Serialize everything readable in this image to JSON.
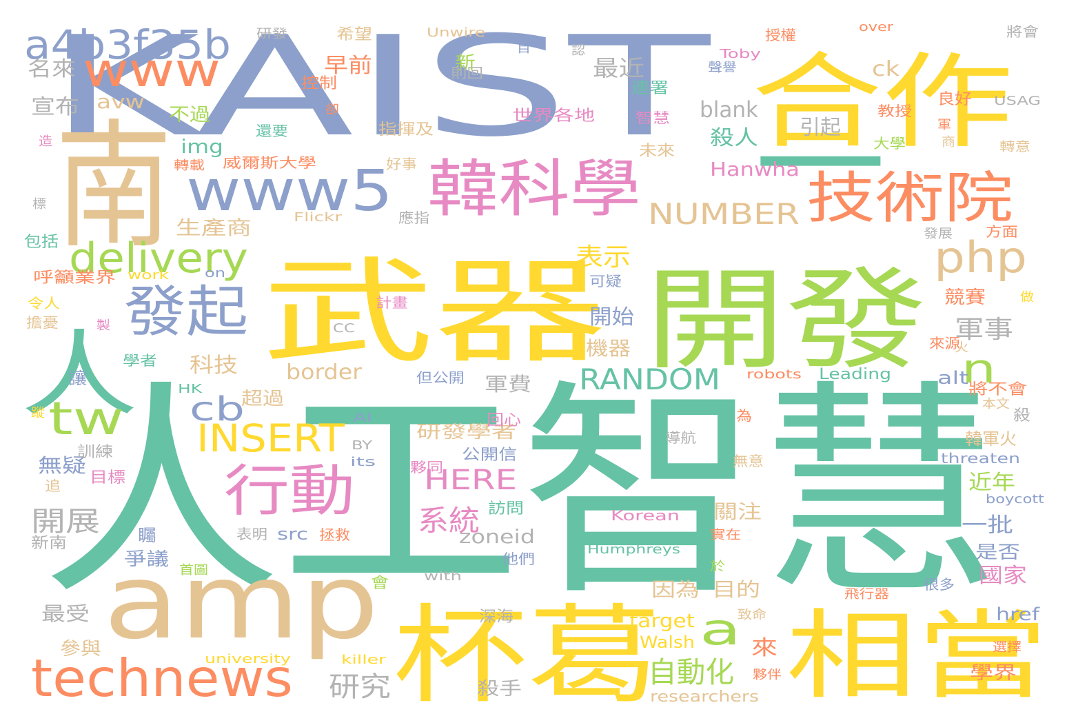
{
  "palette": {
    "teal": "#66c2a5",
    "orange": "#fc8d62",
    "blue": "#8da0cb",
    "pink": "#e78ac3",
    "lime": "#a6d854",
    "yellow": "#ffd92f",
    "tan": "#e5c494",
    "gray": "#b3b3b3"
  },
  "words": [
    {
      "text": "人工智慧",
      "color": "teal"
    },
    {
      "text": "KAIST",
      "color": "blue"
    },
    {
      "text": "南",
      "color": "tan"
    },
    {
      "text": "合作",
      "color": "yellow"
    },
    {
      "text": "武器",
      "color": "yellow"
    },
    {
      "text": "開發",
      "color": "lime"
    },
    {
      "text": "一",
      "color": "teal"
    },
    {
      "text": "amp",
      "color": "tan"
    },
    {
      "text": "杯葛",
      "color": "yellow"
    },
    {
      "text": "相當",
      "color": "yellow"
    },
    {
      "text": "人",
      "color": "teal"
    },
    {
      "text": "韓科學",
      "color": "pink"
    },
    {
      "text": "技術院",
      "color": "orange"
    },
    {
      "text": "www5",
      "color": "blue"
    },
    {
      "text": "www",
      "color": "orange"
    },
    {
      "text": "a4b3f35b",
      "color": "blue"
    },
    {
      "text": "發起",
      "color": "blue"
    },
    {
      "text": "行動",
      "color": "pink"
    },
    {
      "text": "technews",
      "color": "orange"
    },
    {
      "text": "delivery",
      "color": "lime"
    },
    {
      "text": "tw",
      "color": "lime"
    },
    {
      "text": "php",
      "color": "tan"
    },
    {
      "text": "INSERT",
      "color": "yellow"
    },
    {
      "text": "RANDOM",
      "color": "teal"
    },
    {
      "text": "NUMBER",
      "color": "tan"
    },
    {
      "text": "a",
      "color": "lime"
    },
    {
      "text": "n",
      "color": "lime"
    },
    {
      "text": "cb",
      "color": "blue"
    },
    {
      "text": "自動化",
      "color": "lime"
    },
    {
      "text": "系統",
      "color": "pink"
    },
    {
      "text": "HERE",
      "color": "pink"
    },
    {
      "text": "研究",
      "color": "gray"
    },
    {
      "text": "開展",
      "color": "gray"
    },
    {
      "text": "軍事",
      "color": "gray"
    },
    {
      "text": "表示",
      "color": "yellow"
    },
    {
      "text": "宣布",
      "color": "gray"
    },
    {
      "text": "名來",
      "color": "gray"
    },
    {
      "text": "早前",
      "color": "orange"
    },
    {
      "text": "最近",
      "color": "gray"
    },
    {
      "text": "新",
      "color": "lime"
    },
    {
      "text": "ck",
      "color": "tan"
    },
    {
      "text": "avw",
      "color": "tan"
    },
    {
      "text": "不過",
      "color": "lime"
    },
    {
      "text": "blank",
      "color": "gray"
    },
    {
      "text": "引起",
      "color": "gray"
    },
    {
      "text": "殺人",
      "color": "teal"
    },
    {
      "text": "img",
      "color": "teal"
    },
    {
      "text": "Hanwha",
      "color": "pink"
    },
    {
      "text": "生產商",
      "color": "tan"
    },
    {
      "text": "開始",
      "color": "blue"
    },
    {
      "text": "機器",
      "color": "tan"
    },
    {
      "text": "科技",
      "color": "tan"
    },
    {
      "text": "border",
      "color": "tan"
    },
    {
      "text": "軍費",
      "color": "gray"
    },
    {
      "text": "競賽",
      "color": "orange"
    },
    {
      "text": "超過",
      "color": "tan"
    },
    {
      "text": "alt",
      "color": "blue"
    },
    {
      "text": "src",
      "color": "blue"
    },
    {
      "text": "zoneid",
      "color": "gray"
    },
    {
      "text": "無疑",
      "color": "blue"
    },
    {
      "text": "研發學者",
      "color": "tan"
    },
    {
      "text": "近年",
      "color": "lime"
    },
    {
      "text": "一批",
      "color": "blue"
    },
    {
      "text": "是否",
      "color": "blue"
    },
    {
      "text": "國家",
      "color": "pink"
    },
    {
      "text": "關注",
      "color": "tan"
    },
    {
      "text": "目的",
      "color": "tan"
    },
    {
      "text": "因為",
      "color": "tan"
    },
    {
      "text": "爭議",
      "color": "blue"
    },
    {
      "text": "最受",
      "color": "gray"
    },
    {
      "text": "參與",
      "color": "tan"
    },
    {
      "text": "target",
      "color": "yellow"
    },
    {
      "text": "來",
      "color": "orange"
    },
    {
      "text": "Walsh",
      "color": "yellow"
    },
    {
      "text": "href",
      "color": "blue"
    },
    {
      "text": "學界",
      "color": "orange"
    },
    {
      "text": "殺手",
      "color": "gray"
    },
    {
      "text": "researchers",
      "color": "tan"
    },
    {
      "text": "火",
      "color": "tan"
    },
    {
      "text": "韓軍火",
      "color": "tan"
    },
    {
      "text": "將不會",
      "color": "orange"
    },
    {
      "text": "殺",
      "color": "gray"
    },
    {
      "text": "本文",
      "color": "tan"
    },
    {
      "text": "Leading",
      "color": "teal"
    },
    {
      "text": "robots",
      "color": "orange"
    },
    {
      "text": "threaten",
      "color": "blue"
    },
    {
      "text": "boycott",
      "color": "blue"
    },
    {
      "text": "Korean",
      "color": "pink"
    },
    {
      "text": "Humphreys",
      "color": "teal"
    },
    {
      "text": "無意",
      "color": "tan"
    },
    {
      "text": "實在",
      "color": "orange"
    },
    {
      "text": "於",
      "color": "lime"
    },
    {
      "text": "很多",
      "color": "blue"
    },
    {
      "text": "飛行器",
      "color": "orange"
    },
    {
      "text": "選擇",
      "color": "orange"
    },
    {
      "text": "夥伴",
      "color": "orange"
    },
    {
      "text": "致命",
      "color": "tan"
    },
    {
      "text": "killer",
      "color": "yellow"
    },
    {
      "text": "university",
      "color": "yellow"
    },
    {
      "text": "深海",
      "color": "gray"
    },
    {
      "text": "會",
      "color": "lime"
    },
    {
      "text": "with",
      "color": "gray"
    },
    {
      "text": "首圖",
      "color": "lime"
    },
    {
      "text": "新南",
      "color": "gray"
    },
    {
      "text": "表明",
      "color": "gray"
    },
    {
      "text": "拯救",
      "color": "orange"
    },
    {
      "text": "訪問",
      "color": "teal"
    },
    {
      "text": "他們",
      "color": "blue"
    },
    {
      "text": "矚",
      "color": "blue"
    },
    {
      "text": "追",
      "color": "tan"
    },
    {
      "text": "目標",
      "color": "pink"
    },
    {
      "text": "訓練",
      "color": "gray"
    },
    {
      "text": "its",
      "color": "blue"
    },
    {
      "text": "夥同",
      "color": "pink"
    },
    {
      "text": "BY",
      "color": "gray"
    },
    {
      "text": "公開信",
      "color": "blue"
    },
    {
      "text": "回心",
      "color": "pink"
    },
    {
      "text": "AI",
      "color": "blue"
    },
    {
      "text": "但公開",
      "color": "blue"
    },
    {
      "text": "導航",
      "color": "gray"
    },
    {
      "text": "為",
      "color": "orange"
    },
    {
      "text": "讓",
      "color": "blue"
    },
    {
      "text": "蹤",
      "color": "yellow"
    },
    {
      "text": "HK",
      "color": "teal"
    },
    {
      "text": "學者",
      "color": "teal"
    },
    {
      "text": "製",
      "color": "pink"
    },
    {
      "text": "CC",
      "color": "gray"
    },
    {
      "text": "令人",
      "color": "yellow"
    },
    {
      "text": "擔憂",
      "color": "tan"
    },
    {
      "text": "計畫",
      "color": "pink"
    },
    {
      "text": "可疑",
      "color": "blue"
    },
    {
      "text": "來源",
      "color": "orange"
    },
    {
      "text": "做",
      "color": "yellow"
    },
    {
      "text": "呼籲業界",
      "color": "orange"
    },
    {
      "text": "work",
      "color": "yellow"
    },
    {
      "text": "on",
      "color": "blue"
    },
    {
      "text": "包括",
      "color": "teal"
    },
    {
      "text": "Flickr",
      "color": "tan"
    },
    {
      "text": "應指",
      "color": "gray"
    },
    {
      "text": "發展",
      "color": "gray"
    },
    {
      "text": "方面",
      "color": "orange"
    },
    {
      "text": "標",
      "color": "gray"
    },
    {
      "text": "轉載",
      "color": "orange"
    },
    {
      "text": "威爾斯大學",
      "color": "orange"
    },
    {
      "text": "好事",
      "color": "tan"
    },
    {
      "text": "未來",
      "color": "tan"
    },
    {
      "text": "大學",
      "color": "lime"
    },
    {
      "text": "轉意",
      "color": "tan"
    },
    {
      "text": "造",
      "color": "pink"
    },
    {
      "text": "還要",
      "color": "teal"
    },
    {
      "text": "指揮及",
      "color": "tan"
    },
    {
      "text": "世界各地",
      "color": "pink"
    },
    {
      "text": "智慧",
      "color": "pink"
    },
    {
      "text": "教授",
      "color": "orange"
    },
    {
      "text": "軍",
      "color": "orange"
    },
    {
      "text": "商",
      "color": "tan"
    },
    {
      "text": "卻",
      "color": "orange"
    },
    {
      "text": "控制",
      "color": "orange"
    },
    {
      "text": "連署",
      "color": "teal"
    },
    {
      "text": "良好",
      "color": "orange"
    },
    {
      "text": "USAG",
      "color": "gray"
    },
    {
      "text": "研發",
      "color": "gray"
    },
    {
      "text": "希望",
      "color": "tan"
    },
    {
      "text": "Unwire",
      "color": "tan"
    },
    {
      "text": "目",
      "color": "blue"
    },
    {
      "text": "認",
      "color": "gray"
    },
    {
      "text": "則回",
      "color": "gray"
    },
    {
      "text": "授權",
      "color": "orange"
    },
    {
      "text": "Toby",
      "color": "pink"
    },
    {
      "text": "聲譽",
      "color": "blue"
    },
    {
      "text": "over",
      "color": "orange"
    },
    {
      "text": "將會",
      "color": "gray"
    }
  ]
}
